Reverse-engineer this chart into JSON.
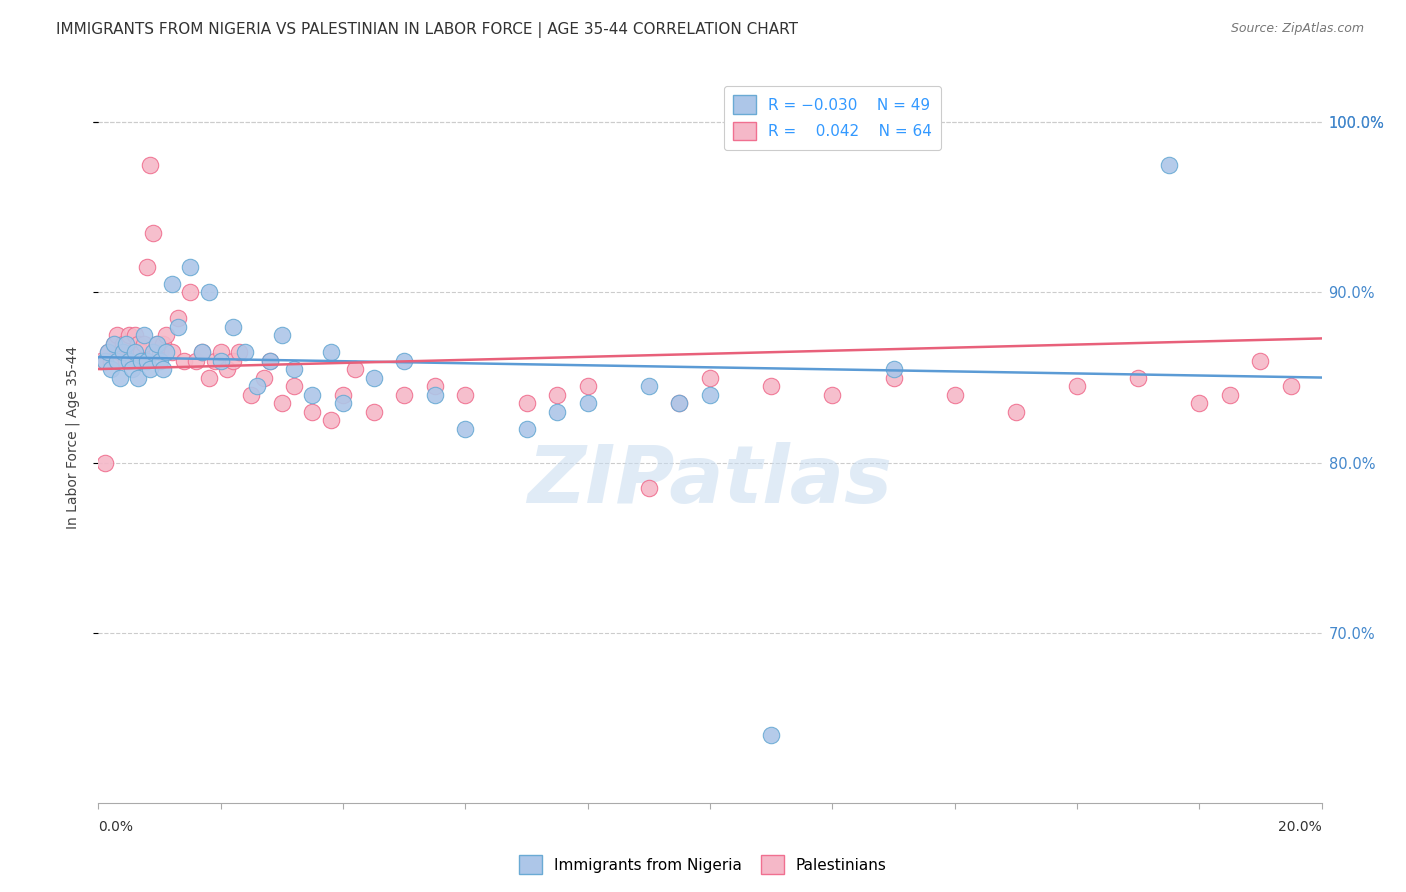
{
  "title": "IMMIGRANTS FROM NIGERIA VS PALESTINIAN IN LABOR FORCE | AGE 35-44 CORRELATION CHART",
  "source": "Source: ZipAtlas.com",
  "ylabel": "In Labor Force | Age 35-44",
  "xlim": [
    0.0,
    20.0
  ],
  "ylim": [
    60.0,
    103.0
  ],
  "yticks": [
    70.0,
    80.0,
    90.0,
    100.0
  ],
  "blue_color": "#adc6e8",
  "pink_color": "#f5b8c8",
  "blue_edge_color": "#6aaad4",
  "pink_edge_color": "#f07090",
  "blue_line_color": "#5b9bd5",
  "pink_line_color": "#e8607a",
  "watermark": "ZIPatlas",
  "nigeria_x": [
    0.1,
    0.15,
    0.2,
    0.25,
    0.3,
    0.35,
    0.4,
    0.45,
    0.5,
    0.55,
    0.6,
    0.65,
    0.7,
    0.75,
    0.8,
    0.85,
    0.9,
    0.95,
    1.0,
    1.05,
    1.1,
    1.2,
    1.3,
    1.5,
    1.7,
    1.8,
    2.0,
    2.2,
    2.4,
    2.6,
    2.8,
    3.0,
    3.2,
    3.5,
    3.8,
    4.0,
    4.5,
    5.0,
    5.5,
    6.0,
    7.0,
    7.5,
    8.0,
    9.0,
    9.5,
    10.0,
    11.0,
    13.0,
    17.5
  ],
  "nigeria_y": [
    86.0,
    86.5,
    85.5,
    87.0,
    86.0,
    85.0,
    86.5,
    87.0,
    86.0,
    85.5,
    86.5,
    85.0,
    86.0,
    87.5,
    86.0,
    85.5,
    86.5,
    87.0,
    86.0,
    85.5,
    86.5,
    90.5,
    88.0,
    91.5,
    86.5,
    90.0,
    86.0,
    88.0,
    86.5,
    84.5,
    86.0,
    87.5,
    85.5,
    84.0,
    86.5,
    83.5,
    85.0,
    86.0,
    84.0,
    82.0,
    82.0,
    83.0,
    83.5,
    84.5,
    83.5,
    84.0,
    64.0,
    85.5,
    97.5
  ],
  "palestinian_x": [
    0.05,
    0.1,
    0.15,
    0.2,
    0.25,
    0.3,
    0.35,
    0.4,
    0.45,
    0.5,
    0.55,
    0.6,
    0.65,
    0.7,
    0.75,
    0.8,
    0.85,
    0.9,
    0.95,
    1.0,
    1.05,
    1.1,
    1.2,
    1.3,
    1.4,
    1.5,
    1.6,
    1.7,
    1.8,
    1.9,
    2.0,
    2.1,
    2.2,
    2.3,
    2.5,
    2.7,
    2.8,
    3.0,
    3.2,
    3.5,
    3.8,
    4.0,
    4.2,
    4.5,
    5.0,
    5.5,
    6.0,
    7.0,
    7.5,
    8.0,
    9.0,
    9.5,
    10.0,
    11.0,
    12.0,
    13.0,
    14.0,
    15.0,
    16.0,
    17.0,
    18.0,
    18.5,
    19.0,
    19.5
  ],
  "palestinian_y": [
    86.0,
    80.0,
    86.5,
    86.0,
    87.0,
    87.5,
    86.5,
    87.0,
    86.0,
    87.5,
    86.5,
    87.5,
    87.0,
    86.5,
    87.0,
    91.5,
    97.5,
    93.5,
    87.0,
    86.5,
    87.0,
    87.5,
    86.5,
    88.5,
    86.0,
    90.0,
    86.0,
    86.5,
    85.0,
    86.0,
    86.5,
    85.5,
    86.0,
    86.5,
    84.0,
    85.0,
    86.0,
    83.5,
    84.5,
    83.0,
    82.5,
    84.0,
    85.5,
    83.0,
    84.0,
    84.5,
    84.0,
    83.5,
    84.0,
    84.5,
    78.5,
    83.5,
    85.0,
    84.5,
    84.0,
    85.0,
    84.0,
    83.0,
    84.5,
    85.0,
    83.5,
    84.0,
    86.0,
    84.5
  ]
}
